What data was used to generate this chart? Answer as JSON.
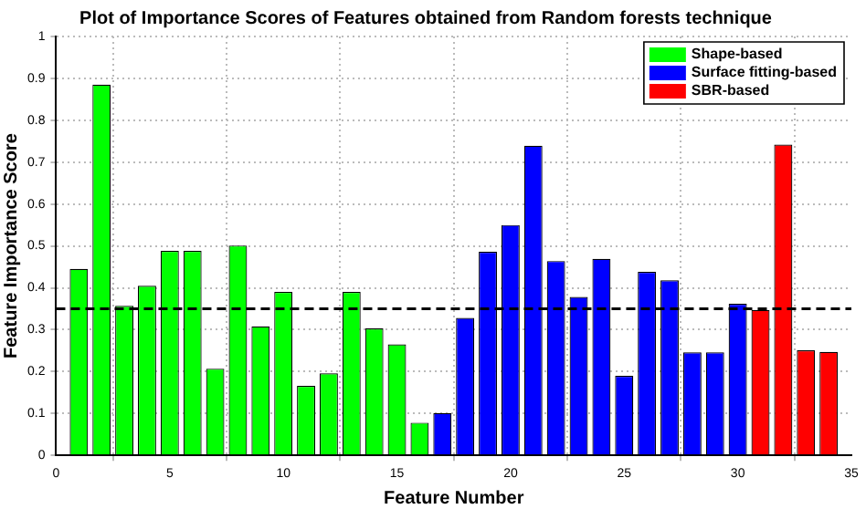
{
  "chart_data": {
    "type": "bar",
    "title": "Plot of Importance Scores of Features obtained from Random forests technique",
    "xlabel": "Feature Number",
    "ylabel": "Feature Importance Score",
    "series": [
      {
        "name": "Shape-based",
        "color": "#00ff00",
        "x": [
          1,
          2,
          3,
          4,
          5,
          6,
          7,
          8,
          9,
          10,
          11,
          12,
          13,
          14,
          15,
          16
        ],
        "values": [
          0.445,
          0.885,
          0.357,
          0.405,
          0.488,
          0.488,
          0.207,
          0.501,
          0.308,
          0.39,
          0.166,
          0.196,
          0.39,
          0.303,
          0.265,
          0.078
        ]
      },
      {
        "name": "Surface fitting-based",
        "color": "#0000ff",
        "x": [
          17,
          18,
          19,
          20,
          21,
          22,
          23,
          24,
          25,
          26,
          27,
          28,
          29,
          30
        ],
        "values": [
          0.101,
          0.328,
          0.486,
          0.55,
          0.739,
          0.464,
          0.378,
          0.469,
          0.19,
          0.438,
          0.418,
          0.246,
          0.246,
          0.362
        ]
      },
      {
        "name": "SBR-based",
        "color": "#ff0000",
        "x": [
          31,
          32,
          33,
          34
        ],
        "values": [
          0.347,
          0.742,
          0.251,
          0.247
        ]
      }
    ],
    "xlim": [
      0,
      35
    ],
    "xticks": [
      0,
      5,
      10,
      15,
      20,
      25,
      30,
      35
    ],
    "ylim": [
      0,
      1
    ],
    "yticks": [
      0,
      0.1,
      0.2,
      0.3,
      0.4,
      0.5,
      0.6,
      0.7,
      0.8,
      0.9,
      1
    ],
    "ref_lines": [
      {
        "axis": "y",
        "value": 0.35,
        "color": "#000000",
        "line_style": "dashed"
      }
    ],
    "grid": true,
    "legend": "top right"
  }
}
